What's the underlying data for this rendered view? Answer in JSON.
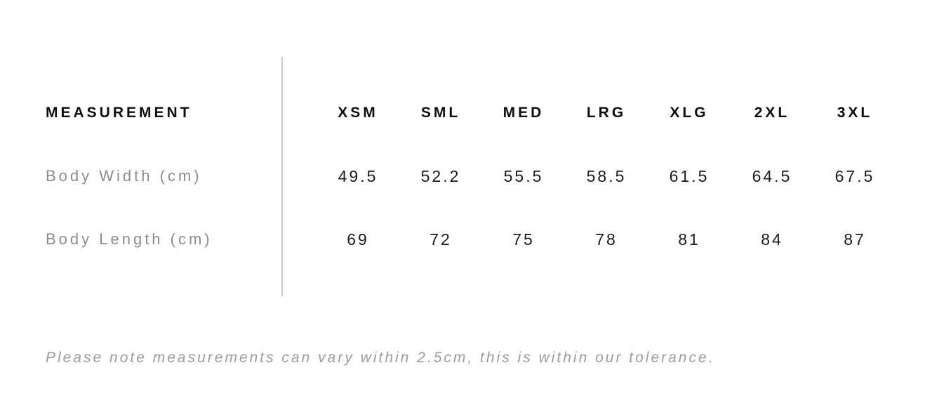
{
  "table": {
    "header_label": "MEASUREMENT",
    "sizes": [
      "XSM",
      "SML",
      "MED",
      "LRG",
      "XLG",
      "2XL",
      "3XL"
    ],
    "rows": [
      {
        "label": "Body Width (cm)",
        "values": [
          "49.5",
          "52.2",
          "55.5",
          "58.5",
          "61.5",
          "64.5",
          "67.5"
        ]
      },
      {
        "label": "Body Length (cm)",
        "values": [
          "69",
          "72",
          "75",
          "78",
          "81",
          "84",
          "87"
        ]
      }
    ]
  },
  "note": "Please note measurements can vary within 2.5cm, this is within our tolerance.",
  "colors": {
    "background": "#ffffff",
    "header_text": "#0f0f0f",
    "value_text": "#1c1c1c",
    "label_text": "#8c8c8c",
    "note_text": "#9c9c9c",
    "divider": "#c9c9c9"
  }
}
